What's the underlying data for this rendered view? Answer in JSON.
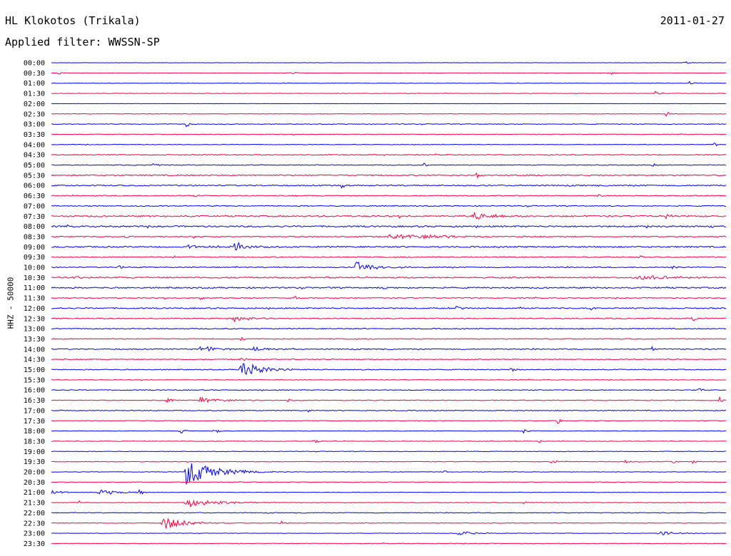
{
  "header": {
    "station": "HL Klokotos (Trikala)",
    "date": "2011-01-27",
    "filter": "Applied filter: WWSSN-SP"
  },
  "chart_data": {
    "type": "line",
    "title": "HL Klokotos (Trikala)",
    "subtitle": "Applied filter: WWSSN-SP",
    "date": "2011-01-27",
    "ylabel": "HHZ - 50000",
    "xlabel": "",
    "grid": false,
    "legend": "none",
    "colors": {
      "even_trace": "#0000ff",
      "odd_trace": "#ff0040"
    },
    "rows": [
      "00:00",
      "00:30",
      "01:00",
      "01:30",
      "02:00",
      "02:30",
      "03:00",
      "03:30",
      "04:00",
      "04:30",
      "05:00",
      "05:30",
      "06:00",
      "06:30",
      "07:00",
      "07:30",
      "08:00",
      "08:30",
      "09:00",
      "09:30",
      "10:00",
      "10:30",
      "11:00",
      "11:30",
      "12:00",
      "12:30",
      "13:00",
      "13:30",
      "14:00",
      "14:30",
      "15:00",
      "15:30",
      "16:00",
      "16:30",
      "17:00",
      "17:30",
      "18:00",
      "18:30",
      "19:00",
      "19:30",
      "20:00",
      "20:30",
      "21:00",
      "21:30",
      "22:00",
      "22:30",
      "23:00",
      "23:30"
    ],
    "x_unit": "fraction of 30-minute row",
    "noise": [
      0.2,
      0.2,
      0.3,
      0.3,
      0.2,
      0.3,
      0.5,
      0.4,
      0.4,
      0.6,
      0.5,
      0.8,
      0.8,
      0.6,
      0.7,
      1.0,
      1.0,
      0.7,
      0.9,
      0.7,
      0.7,
      0.9,
      0.9,
      0.6,
      0.8,
      0.7,
      0.7,
      0.6,
      0.7,
      0.6,
      0.6,
      0.4,
      0.6,
      0.5,
      0.5,
      0.4,
      0.3,
      0.4,
      0.4,
      0.4,
      0.4,
      0.4,
      0.3,
      0.4,
      0.5,
      0.4,
      0.3,
      0.4
    ],
    "events": [
      {
        "row": 0,
        "x": 0.94,
        "amp": 2
      },
      {
        "row": 1,
        "x": 0.01,
        "amp": 2
      },
      {
        "row": 1,
        "x": 0.355,
        "amp": 3
      },
      {
        "row": 1,
        "x": 0.83,
        "amp": 2
      },
      {
        "row": 2,
        "x": 0.945,
        "amp": 3
      },
      {
        "row": 3,
        "x": 0.895,
        "amp": 3
      },
      {
        "row": 5,
        "x": 0.91,
        "amp": 5
      },
      {
        "row": 6,
        "x": 0.2,
        "amp": 4
      },
      {
        "row": 8,
        "x": 0.982,
        "amp": 3
      },
      {
        "row": 10,
        "x": 0.15,
        "amp": 3
      },
      {
        "row": 10,
        "x": 0.55,
        "amp": 4
      },
      {
        "row": 10,
        "x": 0.89,
        "amp": 3
      },
      {
        "row": 11,
        "x": 0.63,
        "amp": 5
      },
      {
        "row": 12,
        "x": 0.43,
        "amp": 3
      },
      {
        "row": 13,
        "x": 0.21,
        "amp": 3
      },
      {
        "row": 13,
        "x": 0.81,
        "amp": 3
      },
      {
        "row": 15,
        "x": 0.625,
        "amp": 7,
        "dur": 0.025
      },
      {
        "row": 15,
        "x": 0.91,
        "amp": 4
      },
      {
        "row": 16,
        "x": 0.88,
        "amp": 3
      },
      {
        "row": 16,
        "x": 0.975,
        "amp": 4
      },
      {
        "row": 17,
        "x": 0.11,
        "amp": 4
      },
      {
        "row": 17,
        "x": 0.21,
        "amp": 3
      },
      {
        "row": 17,
        "x": 0.5,
        "amp": 4,
        "dur": 0.08
      },
      {
        "row": 18,
        "x": 0.27,
        "amp": 8,
        "dur": 0.02
      },
      {
        "row": 18,
        "x": 0.2,
        "amp": 3,
        "dur": 0.04
      },
      {
        "row": 19,
        "x": 0.18,
        "amp": 3
      },
      {
        "row": 19,
        "x": 0.87,
        "amp": 3
      },
      {
        "row": 20,
        "x": 0.45,
        "amp": 8,
        "dur": 0.03
      },
      {
        "row": 20,
        "x": 0.1,
        "amp": 3
      },
      {
        "row": 20,
        "x": 0.92,
        "amp": 3
      },
      {
        "row": 21,
        "x": 0.035,
        "amp": 4
      },
      {
        "row": 21,
        "x": 0.87,
        "amp": 4,
        "dur": 0.04
      },
      {
        "row": 22,
        "x": 0.49,
        "amp": 3
      },
      {
        "row": 23,
        "x": 0.22,
        "amp": 3
      },
      {
        "row": 23,
        "x": 0.36,
        "amp": 3
      },
      {
        "row": 24,
        "x": 0.6,
        "amp": 4
      },
      {
        "row": 24,
        "x": 0.8,
        "amp": 4
      },
      {
        "row": 25,
        "x": 0.27,
        "amp": 5,
        "dur": 0.02
      },
      {
        "row": 25,
        "x": 0.95,
        "amp": 4
      },
      {
        "row": 27,
        "x": 0.28,
        "amp": 3
      },
      {
        "row": 28,
        "x": 0.22,
        "amp": 6,
        "dur": 0.02
      },
      {
        "row": 28,
        "x": 0.3,
        "amp": 4,
        "dur": 0.02
      },
      {
        "row": 28,
        "x": 0.89,
        "amp": 5
      },
      {
        "row": 29,
        "x": 0.28,
        "amp": 5
      },
      {
        "row": 30,
        "x": 0.28,
        "amp": 14,
        "dur": 0.025
      },
      {
        "row": 30,
        "x": 0.68,
        "amp": 5
      },
      {
        "row": 32,
        "x": 0.96,
        "amp": 5
      },
      {
        "row": 33,
        "x": 0.17,
        "amp": 4
      },
      {
        "row": 33,
        "x": 0.22,
        "amp": 5,
        "dur": 0.025
      },
      {
        "row": 33,
        "x": 0.35,
        "amp": 3
      },
      {
        "row": 33,
        "x": 0.99,
        "amp": 5
      },
      {
        "row": 34,
        "x": 0.38,
        "amp": 3
      },
      {
        "row": 35,
        "x": 0.75,
        "amp": 5
      },
      {
        "row": 36,
        "x": 0.19,
        "amp": 5
      },
      {
        "row": 36,
        "x": 0.24,
        "amp": 5
      },
      {
        "row": 36,
        "x": 0.7,
        "amp": 3
      },
      {
        "row": 37,
        "x": 0.39,
        "amp": 3
      },
      {
        "row": 37,
        "x": 0.72,
        "amp": 3
      },
      {
        "row": 39,
        "x": 0.74,
        "amp": 4
      },
      {
        "row": 39,
        "x": 0.85,
        "amp": 3
      },
      {
        "row": 39,
        "x": 0.92,
        "amp": 3
      },
      {
        "row": 39,
        "x": 0.95,
        "amp": 4
      },
      {
        "row": 40,
        "x": 0.2,
        "amp": 18,
        "dur": 0.04
      },
      {
        "row": 40,
        "x": 0.58,
        "amp": 3
      },
      {
        "row": 42,
        "x": 0.0,
        "amp": 3,
        "dur": 0.02
      },
      {
        "row": 42,
        "x": 0.07,
        "amp": 4,
        "dur": 0.03
      },
      {
        "row": 42,
        "x": 0.13,
        "amp": 4
      },
      {
        "row": 43,
        "x": 0.04,
        "amp": 3
      },
      {
        "row": 43,
        "x": 0.2,
        "amp": 7,
        "dur": 0.04
      },
      {
        "row": 43,
        "x": 0.7,
        "amp": 3
      },
      {
        "row": 45,
        "x": 0.165,
        "amp": 11,
        "dur": 0.025
      },
      {
        "row": 45,
        "x": 0.34,
        "amp": 3
      },
      {
        "row": 46,
        "x": 0.6,
        "amp": 3,
        "dur": 0.03
      },
      {
        "row": 46,
        "x": 0.9,
        "amp": 3,
        "dur": 0.03
      }
    ]
  }
}
